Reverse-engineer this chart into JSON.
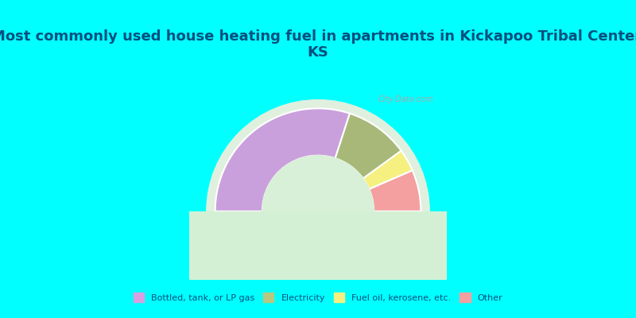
{
  "title": "Most commonly used house heating fuel in apartments in Kickapoo Tribal Center,\nKS",
  "title_color": "#005080",
  "title_fontsize": 13,
  "background_color": "#00FFFF",
  "chart_bg": "#e8f5e9",
  "segments": [
    {
      "label": "Bottled, tank, or LP gas",
      "value": 60,
      "color": "#c9a0dc"
    },
    {
      "label": "Electricity",
      "value": 20,
      "color": "#a8b878"
    },
    {
      "label": "Fuel oil, kerosene, etc.",
      "value": 7,
      "color": "#f5f080"
    },
    {
      "label": "Other",
      "value": 13,
      "color": "#f4a0a0"
    }
  ],
  "legend_colors": [
    "#d8a0e0",
    "#b8c880",
    "#f5f080",
    "#f4a0a0"
  ],
  "legend_labels": [
    "Bottled, tank, or LP gas",
    "Electricity",
    "Fuel oil, kerosene, etc.",
    "Other"
  ],
  "watermark": "City-Data.com"
}
